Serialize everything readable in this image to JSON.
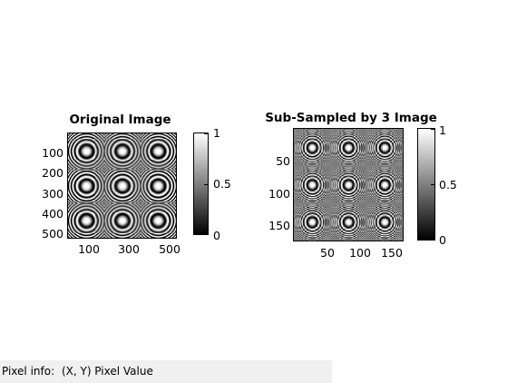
{
  "figure": {
    "left_panel": {
      "title": "Original Image",
      "y_ticks": [
        "100",
        "200",
        "300",
        "400",
        "500"
      ],
      "x_ticks": [
        "100",
        "300",
        "500"
      ],
      "colorbar_ticks": [
        "1",
        "0.5",
        "0"
      ]
    },
    "right_panel": {
      "title": "Sub-Sampled by 3 Image",
      "y_ticks": [
        "50",
        "100",
        "150"
      ],
      "x_ticks": [
        "50",
        "100",
        "150"
      ],
      "colorbar_ticks": [
        "1",
        "0.5",
        "0"
      ]
    }
  },
  "status_bar": {
    "label": "Pixel info:",
    "text": "(X, Y)  Pixel Value"
  }
}
